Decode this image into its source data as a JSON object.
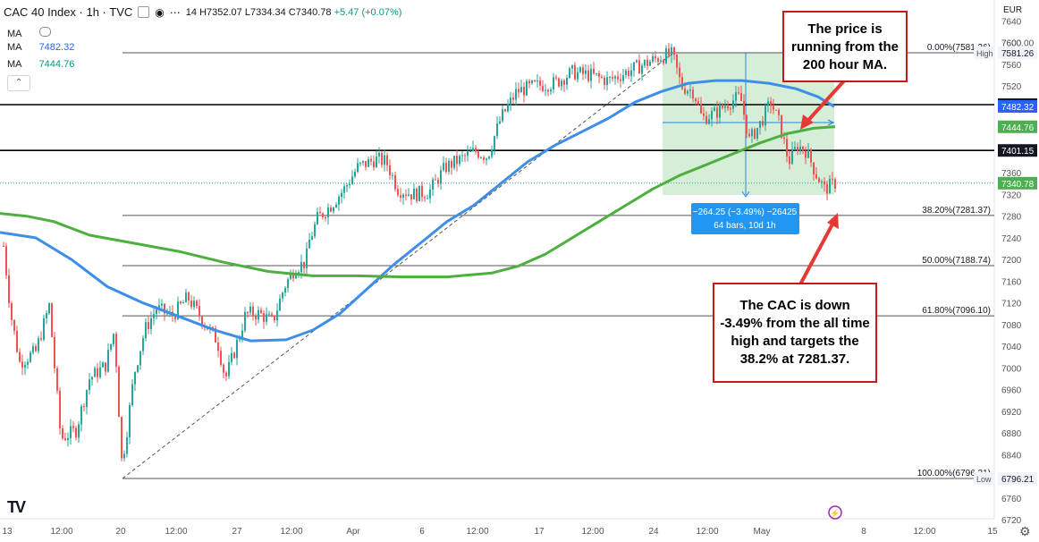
{
  "header": {
    "symbol": "CAC 40 Index · 1h · TVC",
    "ohlc_prefix": "14",
    "ohlc_high": "H7352.07",
    "ohlc_low": "L7334.34",
    "ohlc_close": "C7340.78",
    "ohlc_change": "+5.47 (+0.07%)"
  },
  "indicators": [
    {
      "label": "MA",
      "value": "",
      "color": "#2962ff"
    },
    {
      "label": "MA",
      "value": "7482.32",
      "color": "#2962ff"
    },
    {
      "label": "MA",
      "value": "7444.76",
      "color": "#089981"
    }
  ],
  "currency": "EUR",
  "callouts": {
    "top": "The price is running from the 200 hour MA.",
    "bottom": "The CAC is down -3.49% from the all time high and targets the 38.2% at 7281.37."
  },
  "measure": {
    "line1": "−264.25 (−3.49%) −26425",
    "line2": "64 bars, 10d 1h"
  },
  "chart_data": {
    "type": "candlestick",
    "yaxis_ticks": [
      6720,
      6760,
      6800,
      6840,
      6880,
      6920,
      6960,
      7000,
      7040,
      7080,
      7120,
      7160,
      7200,
      7240,
      7280,
      7320,
      7360,
      7400,
      7440,
      7480,
      7520,
      7560,
      7600,
      7640
    ],
    "xaxis_ticks": [
      "13",
      "12:00",
      "20",
      "12:00",
      "27",
      "12:00",
      "Apr",
      "6",
      "12:00",
      "17",
      "12:00",
      "24",
      "12:00",
      "May",
      "8",
      "12:00",
      "15"
    ],
    "fibonacci": [
      {
        "label": "0.00%(7581.26)",
        "value": 7581.26
      },
      {
        "label": "38.20%(7281.37)",
        "value": 7281.37
      },
      {
        "label": "50.00%(7188.74)",
        "value": 7188.74
      },
      {
        "label": "61.80%(7096.10)",
        "value": 7096.1
      },
      {
        "label": "100.00%(6796.21)",
        "value": 6796.21
      }
    ],
    "horizontal_lines": [
      7485.59,
      7401.15
    ],
    "price_tags": [
      {
        "label": "7600.00",
        "value": 7600,
        "kind": "plain"
      },
      {
        "label": "7581.26",
        "value": 7581.26,
        "kind": "high",
        "tag": "High"
      },
      {
        "label": "7485.59",
        "value": 7485.59,
        "kind": "black"
      },
      {
        "label": "7482.32",
        "value": 7482.32,
        "kind": "blue"
      },
      {
        "label": "7444.76",
        "value": 7444.76,
        "kind": "green"
      },
      {
        "label": "7401.15",
        "value": 7401.15,
        "kind": "black"
      },
      {
        "label": "7340.78",
        "value": 7340.78,
        "kind": "green"
      },
      {
        "label": "6796.21",
        "value": 6796.21,
        "kind": "low",
        "tag": "Low"
      }
    ],
    "ma100_color": "#3d8ee8",
    "ma200_color": "#4caf3e",
    "up_color": "#26a69a",
    "down_color": "#ef5350"
  }
}
